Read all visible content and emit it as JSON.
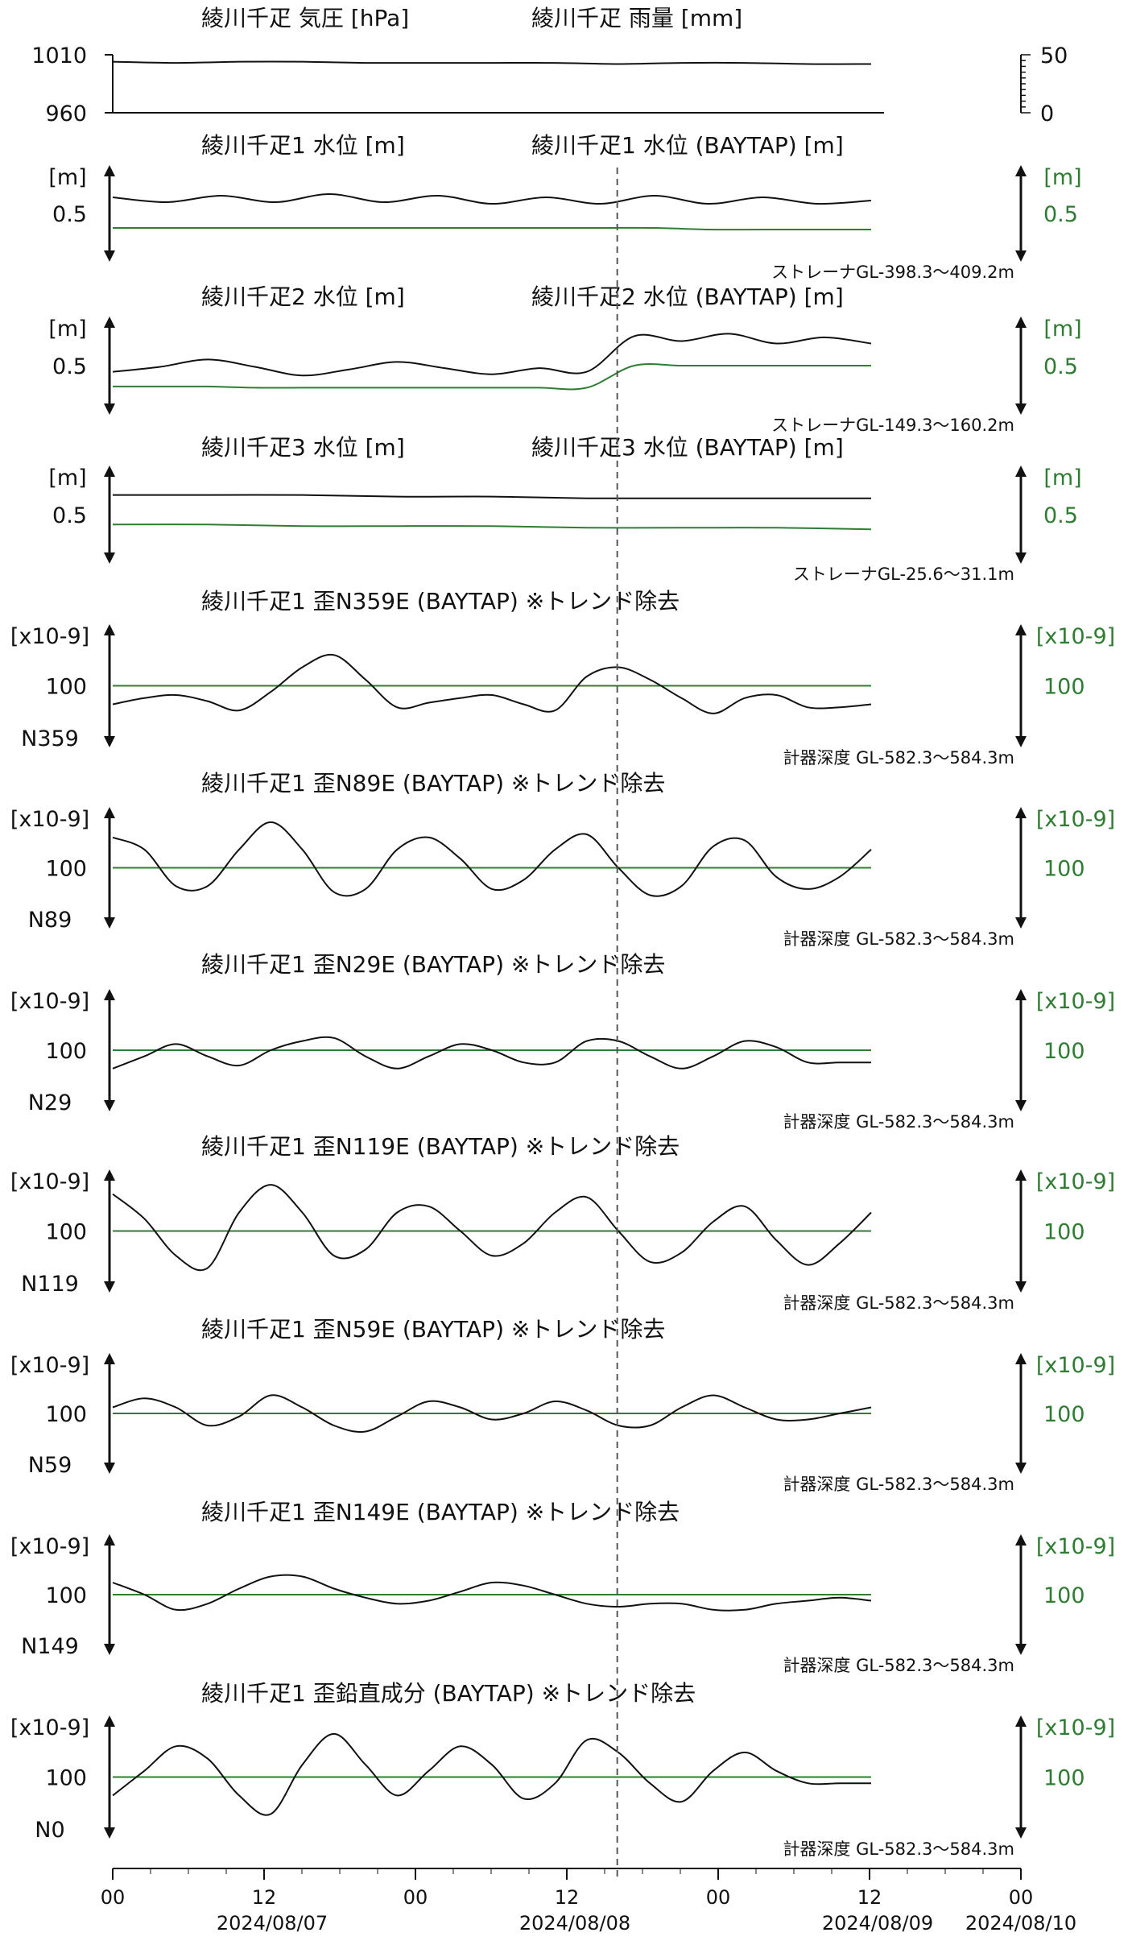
{
  "colors": {
    "black_series": "#111111",
    "green_series": "#2e7d32",
    "event_line": "#555555"
  },
  "chart_data": {
    "type": "line",
    "x_ticks": [
      "00",
      "12",
      "00",
      "12",
      "00",
      "12",
      "00"
    ],
    "date_labels": [
      "2024/08/07",
      "2024/08/08",
      "2024/08/09",
      "2024/08/10"
    ],
    "x_range": [
      "2024/08/07 00:00",
      "2024/08/10 00:00"
    ],
    "event_time": "2024/08/08 16:00",
    "panels": [
      {
        "id": "pressure",
        "titles": [
          "綾川千疋 気圧 [hPa]",
          "綾川千疋 雨量 [mm]"
        ],
        "left_ticks": [
          "1010",
          "960"
        ],
        "left_range": [
          960,
          1010
        ],
        "right_ticks": [
          "50",
          "0"
        ],
        "right_range": [
          0,
          50
        ],
        "series": [
          {
            "color": "black",
            "axis": "left",
            "values": [
              1004,
              1003,
              1004,
              1004,
              1003,
              1003,
              1003,
              1003,
              1002,
              1003,
              1003,
              1002,
              1002
            ]
          },
          {
            "color": "black",
            "axis": "right",
            "values": [
              0,
              0,
              0,
              0,
              0,
              0,
              0,
              0,
              0,
              0,
              0,
              0,
              0
            ]
          }
        ]
      },
      {
        "id": "water1",
        "titles": [
          "綾川千疋1 水位 [m]",
          "綾川千疋1 水位 (BAYTAP) [m]"
        ],
        "left_unit": "[m]",
        "left_value_label": "0.5",
        "right_unit": "[m]",
        "right_value_label": "0.5",
        "left_range": [
          0.2,
          0.8
        ],
        "note": "ストレーナGL-398.3～409.2m",
        "series": [
          {
            "color": "black",
            "values": [
              0.6,
              0.57,
              0.61,
              0.57,
              0.62,
              0.57,
              0.61,
              0.56,
              0.6,
              0.56,
              0.61,
              0.56,
              0.6,
              0.56,
              0.58
            ]
          },
          {
            "color": "green",
            "values": [
              0.41,
              0.41,
              0.41,
              0.41,
              0.41,
              0.41,
              0.41,
              0.41,
              0.41,
              0.41,
              0.41,
              0.4,
              0.4,
              0.4,
              0.4
            ]
          }
        ]
      },
      {
        "id": "water2",
        "titles": [
          "綾川千疋2 水位 [m]",
          "綾川千疋2 水位 (BAYTAP) [m]"
        ],
        "left_unit": "[m]",
        "left_value_label": "0.5",
        "right_unit": "[m]",
        "right_value_label": "0.5",
        "left_range": [
          0.1,
          0.9
        ],
        "note": "ストレーナGL-149.3～160.2m",
        "series": [
          {
            "color": "black",
            "values": [
              0.45,
              0.49,
              0.55,
              0.49,
              0.42,
              0.47,
              0.53,
              0.48,
              0.43,
              0.48,
              0.45,
              0.74,
              0.7,
              0.76,
              0.68,
              0.73,
              0.68
            ]
          },
          {
            "color": "green",
            "values": [
              0.33,
              0.33,
              0.33,
              0.32,
              0.32,
              0.32,
              0.32,
              0.32,
              0.32,
              0.32,
              0.32,
              0.5,
              0.5,
              0.5,
              0.5,
              0.5,
              0.5
            ]
          }
        ]
      },
      {
        "id": "water3",
        "titles": [
          "綾川千疋3 水位 [m]",
          "綾川千疋3 水位 (BAYTAP) [m]"
        ],
        "left_unit": "[m]",
        "left_value_label": "0.5",
        "right_unit": "[m]",
        "right_value_label": "0.5",
        "left_range": [
          0.2,
          0.8
        ],
        "note": "ストレーナGL-25.6～31.1m",
        "series": [
          {
            "color": "black",
            "values": [
              0.62,
              0.62,
              0.62,
              0.61,
              0.61,
              0.6,
              0.6,
              0.6,
              0.6
            ]
          },
          {
            "color": "green",
            "values": [
              0.44,
              0.44,
              0.43,
              0.43,
              0.43,
              0.42,
              0.42,
              0.42,
              0.41
            ]
          }
        ]
      },
      {
        "id": "strain_n359",
        "titles": [
          "綾川千疋1 歪N359E (BAYTAP) ※トレンド除去"
        ],
        "left_unit": "[x10-9]",
        "left_value_label": "100",
        "dir_label": "N359",
        "right_unit": "[x10-9]",
        "right_value_label": "100",
        "left_range": [
          -200,
          200
        ],
        "note": "計器深度 GL-582.3～584.3m",
        "series": [
          {
            "color": "black",
            "values": [
              -60,
              -40,
              -30,
              -50,
              -80,
              -20,
              60,
              100,
              20,
              -70,
              -55,
              -40,
              -30,
              -60,
              -80,
              30,
              60,
              20,
              -40,
              -90,
              -40,
              -30,
              -70,
              -70,
              -60
            ]
          },
          {
            "color": "green",
            "values": [
              0,
              0,
              0,
              0,
              0,
              0,
              0,
              0,
              0,
              0,
              0,
              0,
              0,
              0,
              0,
              0,
              0,
              0,
              0,
              0,
              0,
              0,
              0,
              0,
              0
            ]
          }
        ]
      },
      {
        "id": "strain_n89",
        "titles": [
          "綾川千疋1 歪N89E (BAYTAP) ※トレンド除去"
        ],
        "left_unit": "[x10-9]",
        "left_value_label": "100",
        "dir_label": "N89",
        "right_unit": "[x10-9]",
        "right_value_label": "100",
        "left_range": [
          -200,
          200
        ],
        "note": "計器深度 GL-582.3～584.3m",
        "series": [
          {
            "color": "black",
            "values": [
              100,
              60,
              -60,
              -60,
              60,
              150,
              60,
              -80,
              -70,
              60,
              100,
              30,
              -70,
              -40,
              60,
              110,
              0,
              -90,
              -60,
              70,
              90,
              -30,
              -70,
              -30,
              60
            ]
          },
          {
            "color": "green",
            "values": [
              0,
              0,
              0,
              0,
              0,
              0,
              0,
              0,
              0,
              0,
              0,
              0,
              0,
              0,
              0,
              0,
              0,
              0,
              0,
              0,
              0,
              0,
              0,
              0,
              0
            ]
          }
        ]
      },
      {
        "id": "strain_n29",
        "titles": [
          "綾川千疋1 歪N29E (BAYTAP) ※トレンド除去"
        ],
        "left_unit": "[x10-9]",
        "left_value_label": "100",
        "dir_label": "N29",
        "right_unit": "[x10-9]",
        "right_value_label": "100",
        "left_range": [
          -200,
          200
        ],
        "note": "計器深度 GL-582.3～584.3m",
        "series": [
          {
            "color": "black",
            "values": [
              -60,
              -20,
              20,
              -20,
              -50,
              0,
              30,
              40,
              -20,
              -60,
              -20,
              20,
              0,
              -40,
              -40,
              30,
              30,
              -20,
              -60,
              -20,
              30,
              10,
              -40,
              -40,
              -40
            ]
          },
          {
            "color": "green",
            "values": [
              0,
              0,
              0,
              0,
              0,
              0,
              0,
              0,
              0,
              0,
              0,
              0,
              0,
              0,
              0,
              0,
              0,
              0,
              0,
              0,
              0,
              0,
              0,
              0,
              0
            ]
          }
        ]
      },
      {
        "id": "strain_n119",
        "titles": [
          "綾川千疋1 歪N119E (BAYTAP) ※トレンド除去"
        ],
        "left_unit": "[x10-9]",
        "left_value_label": "100",
        "dir_label": "N119",
        "right_unit": "[x10-9]",
        "right_value_label": "100",
        "left_range": [
          -200,
          200
        ],
        "note": "計器深度 GL-582.3～584.3m",
        "series": [
          {
            "color": "black",
            "values": [
              120,
              40,
              -80,
              -120,
              60,
              150,
              60,
              -80,
              -60,
              60,
              80,
              0,
              -80,
              -40,
              60,
              110,
              0,
              -100,
              -70,
              30,
              80,
              -30,
              -110,
              -40,
              60
            ]
          },
          {
            "color": "green",
            "values": [
              0,
              0,
              0,
              0,
              0,
              0,
              0,
              0,
              0,
              0,
              0,
              0,
              0,
              0,
              0,
              0,
              0,
              0,
              0,
              0,
              0,
              0,
              0,
              0,
              0
            ]
          }
        ]
      },
      {
        "id": "strain_n59",
        "titles": [
          "綾川千疋1 歪N59E (BAYTAP) ※トレンド除去"
        ],
        "left_unit": "[x10-9]",
        "left_value_label": "100",
        "dir_label": "N59",
        "right_unit": "[x10-9]",
        "right_value_label": "100",
        "left_range": [
          -200,
          200
        ],
        "note": "計器深度 GL-582.3～584.3m",
        "series": [
          {
            "color": "black",
            "values": [
              20,
              50,
              20,
              -40,
              -10,
              60,
              20,
              -40,
              -60,
              -10,
              40,
              20,
              -20,
              0,
              40,
              10,
              -40,
              -40,
              20,
              60,
              20,
              -20,
              -20,
              0,
              20
            ]
          },
          {
            "color": "green",
            "values": [
              0,
              0,
              0,
              0,
              0,
              0,
              0,
              0,
              0,
              0,
              0,
              0,
              0,
              0,
              0,
              0,
              0,
              0,
              0,
              0,
              0,
              0,
              0,
              0,
              0
            ]
          }
        ]
      },
      {
        "id": "strain_n149",
        "titles": [
          "綾川千疋1 歪N149E (BAYTAP) ※トレンド除去"
        ],
        "left_unit": "[x10-9]",
        "left_value_label": "100",
        "dir_label": "N149",
        "right_unit": "[x10-9]",
        "right_value_label": "100",
        "left_range": [
          -200,
          200
        ],
        "note": "計器深度 GL-582.3～584.3m",
        "series": [
          {
            "color": "black",
            "values": [
              40,
              0,
              -50,
              -30,
              20,
              60,
              60,
              20,
              -10,
              -30,
              -20,
              10,
              40,
              30,
              0,
              -30,
              -40,
              -30,
              -30,
              -50,
              -50,
              -30,
              -20,
              -10,
              -20
            ]
          },
          {
            "color": "green",
            "values": [
              0,
              0,
              0,
              0,
              0,
              0,
              0,
              0,
              0,
              0,
              0,
              0,
              0,
              0,
              0,
              0,
              0,
              0,
              0,
              0,
              0,
              0,
              0,
              0,
              0
            ]
          }
        ]
      },
      {
        "id": "strain_vertical",
        "titles": [
          "綾川千疋1 歪鉛直成分 (BAYTAP) ※トレンド除去"
        ],
        "left_unit": "[x10-9]",
        "left_value_label": "100",
        "dir_label": "N0",
        "right_unit": "[x10-9]",
        "right_value_label": "100",
        "left_range": [
          -200,
          200
        ],
        "note": "計器深度 GL-582.3～584.3m",
        "series": [
          {
            "color": "black",
            "values": [
              -60,
              20,
              100,
              60,
              -60,
              -120,
              40,
              140,
              40,
              -60,
              20,
              100,
              40,
              -70,
              -20,
              120,
              80,
              -20,
              -80,
              20,
              80,
              20,
              -20,
              -20,
              -20
            ]
          },
          {
            "color": "green",
            "values": [
              0,
              0,
              0,
              0,
              0,
              0,
              0,
              0,
              0,
              0,
              0,
              0,
              0,
              0,
              0,
              0,
              0,
              0,
              0,
              0,
              0,
              0,
              0,
              0,
              0
            ]
          }
        ]
      }
    ]
  }
}
